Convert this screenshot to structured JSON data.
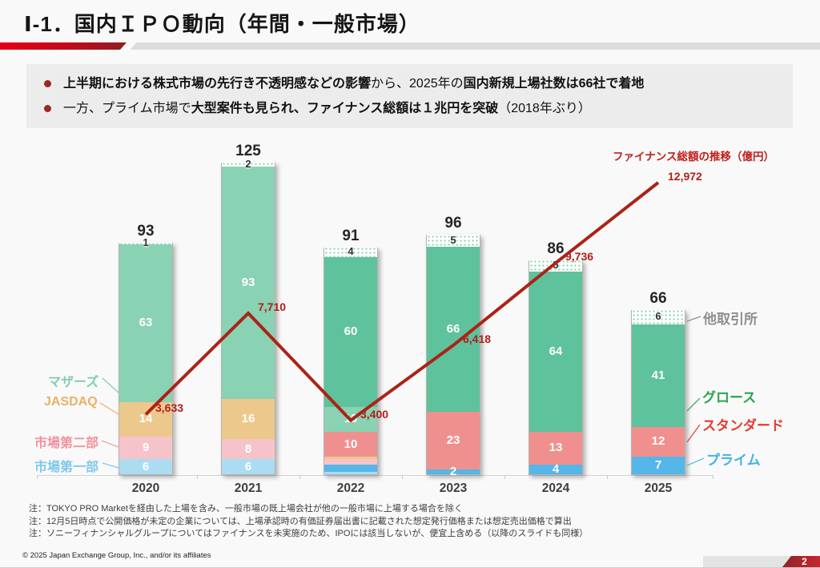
{
  "slide": {
    "title": "Ⅰ-1．国内ＩＰＯ動向（年間・一般市場）",
    "page_number": "2",
    "copyright": "© 2025 Japan Exchange Group, Inc., and/or its affiliates"
  },
  "summary": {
    "bullets": [
      {
        "parts": [
          {
            "text": "上半期における株式市場の先行き不透明感などの影響",
            "bold": true
          },
          {
            "text": "から、2025年の",
            "bold": false
          },
          {
            "text": "国内新規上場社数は66社で着地",
            "bold": true
          }
        ]
      },
      {
        "parts": [
          {
            "text": "一方、プライム市場で",
            "bold": false
          },
          {
            "text": "大型案件も見られ、ファイナンス総額は１兆円を突破",
            "bold": true
          },
          {
            "text": "（2018年ぶり）",
            "bold": false
          }
        ]
      }
    ]
  },
  "chart_data": {
    "type": "bar",
    "subtype": "stacked-bars-with-line-overlay",
    "categories": [
      "2020",
      "2021",
      "2022",
      "2023",
      "2024",
      "2025"
    ],
    "totals": [
      93,
      125,
      91,
      96,
      86,
      66
    ],
    "grid": false,
    "legend_position": "callout-labels-left-and-right",
    "line": {
      "label": "ファイナンス総額の推移（億円）",
      "name": "ファイナンス総額",
      "unit": "億円",
      "values": [
        3633,
        7710,
        3400,
        6418,
        9736,
        12972
      ],
      "color": "#ac2217"
    },
    "markets": {
      "市場第一部": {
        "fill": "#abdcf2",
        "legend_color": "#7fc8ee"
      },
      "市場第二部": {
        "fill": "#f6c3ca",
        "legend_color": "#f0939f"
      },
      "JASDAQ": {
        "fill": "#edc88d",
        "legend_color": "#e9b164"
      },
      "マザーズ": {
        "fill": "#89d2b3",
        "legend_color": "#7fceae"
      },
      "プライム": {
        "fill": "#55b6e9",
        "legend_color": "#43b2ec"
      },
      "スタンダード": {
        "fill": "#f0908e",
        "legend_color": "#e73a2e"
      },
      "グロース": {
        "fill": "#5ec29d",
        "legend_color": "#2ba54d"
      },
      "他取引所": {
        "fill": "pattern",
        "legend_color": "#8e8e8e"
      }
    },
    "bars": [
      {
        "year": "2020",
        "total": 93,
        "segments": [
          {
            "market": "市場第一部",
            "value": 6,
            "show": true
          },
          {
            "market": "市場第二部",
            "value": 9,
            "show": true
          },
          {
            "market": "JASDAQ",
            "value": 14,
            "show": true
          },
          {
            "market": "マザーズ",
            "value": 63,
            "show": true
          },
          {
            "market": "他取引所",
            "value": 1,
            "show": true
          }
        ]
      },
      {
        "year": "2021",
        "total": 125,
        "segments": [
          {
            "market": "市場第一部",
            "value": 6,
            "show": true
          },
          {
            "market": "市場第二部",
            "value": 8,
            "show": true
          },
          {
            "market": "JASDAQ",
            "value": 16,
            "show": true
          },
          {
            "market": "マザーズ",
            "value": 93,
            "show": true
          },
          {
            "market": "他取引所",
            "value": 2,
            "show": true
          }
        ]
      },
      {
        "year": "2022",
        "total": 91,
        "segments": [
          {
            "market": "市場第一部",
            "value": 1,
            "show": false
          },
          {
            "market": "プライム",
            "value": 3,
            "show": false
          },
          {
            "market": "市場第二部",
            "value": 2,
            "show": false
          },
          {
            "market": "JASDAQ",
            "value": 1,
            "show": false
          },
          {
            "market": "スタンダード",
            "value": 10,
            "show": true
          },
          {
            "market": "マザーズ",
            "value": 10,
            "show": true
          },
          {
            "market": "グロース",
            "value": 60,
            "show": true
          },
          {
            "market": "他取引所",
            "value": 4,
            "show": true
          }
        ]
      },
      {
        "year": "2023",
        "total": 96,
        "segments": [
          {
            "market": "プライム",
            "value": 2,
            "show": true
          },
          {
            "market": "スタンダード",
            "value": 23,
            "show": true
          },
          {
            "market": "グロース",
            "value": 66,
            "show": true
          },
          {
            "market": "他取引所",
            "value": 5,
            "show": true
          }
        ]
      },
      {
        "year": "2024",
        "total": 86,
        "segments": [
          {
            "market": "プライム",
            "value": 4,
            "show": true
          },
          {
            "market": "スタンダード",
            "value": 13,
            "show": true
          },
          {
            "market": "グロース",
            "value": 64,
            "show": true
          },
          {
            "market": "他取引所",
            "value": 5,
            "show": true
          }
        ]
      },
      {
        "year": "2025",
        "total": 66,
        "segments": [
          {
            "market": "プライム",
            "value": 7,
            "show": true
          },
          {
            "market": "スタンダード",
            "value": 12,
            "show": true
          },
          {
            "market": "グロース",
            "value": 41,
            "show": true
          },
          {
            "market": "他取引所",
            "value": 6,
            "show": true
          }
        ]
      }
    ],
    "left_legend": [
      "マザーズ",
      "JASDAQ",
      "市場第二部",
      "市場第一部"
    ],
    "right_legend": [
      "他取引所",
      "グロース",
      "スタンダード",
      "プライム"
    ]
  },
  "notes": [
    "注：TOKYO PRO Marketを経由した上場を含み、一般市場の既上場会社が他の一般市場に上場する場合を除く",
    "注：12月5日時点で公開価格が未定の企業については、上場承認時の有価証券届出書に記載された想定発行価格または想定売出価格で算出",
    "注：ソニーフィナンシャルグループについてはファイナンスを未実施のため、IPOには該当しないが、便宜上含める（以降のスライドも同様）"
  ]
}
